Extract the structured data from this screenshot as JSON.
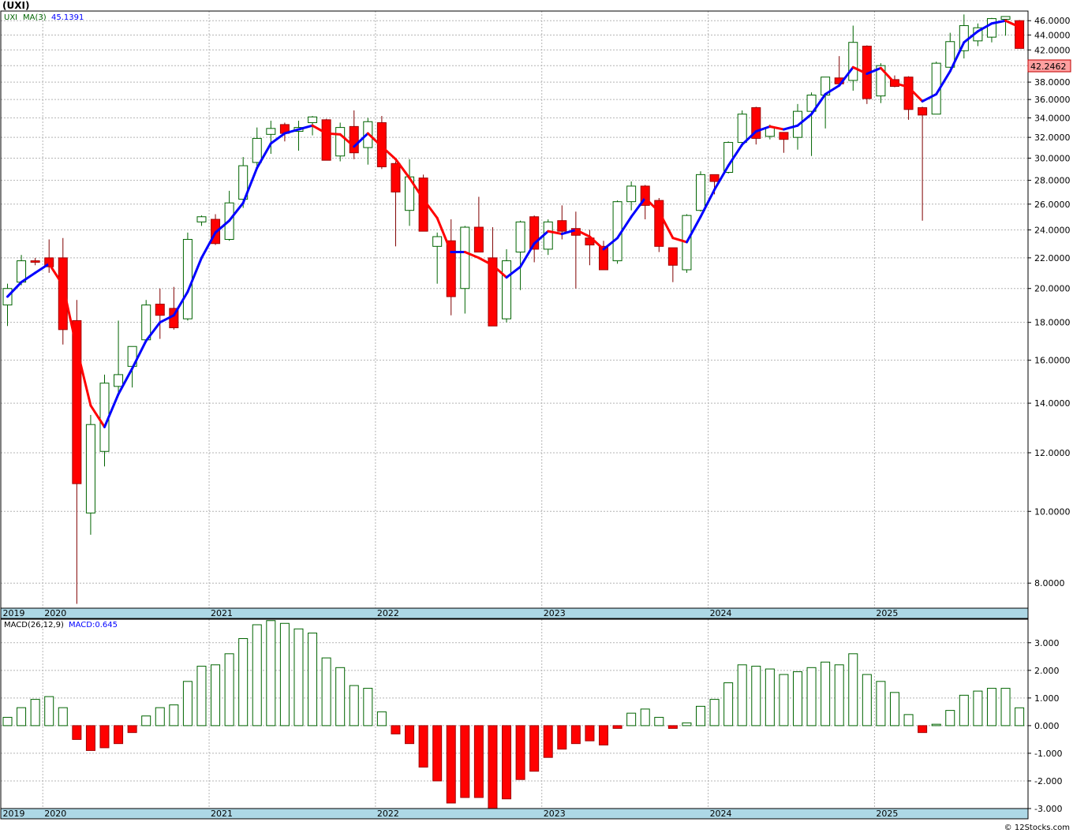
{
  "chart_data": [
    {
      "type": "candlestick",
      "title": "(UXI)",
      "legend": {
        "symbol": "UXI",
        "ma_label": "MA(3)",
        "ma_value": "45.1391"
      },
      "last_price": "42.2462",
      "y_scale": "log",
      "ylim": [
        7.4,
        47.4
      ],
      "y_ticks": [
        "8.0000",
        "10.0000",
        "12.0000",
        "14.0000",
        "16.0000",
        "18.0000",
        "20.0000",
        "22.0000",
        "24.0000",
        "26.0000",
        "28.0000",
        "30.0000",
        "32.0000",
        "34.0000",
        "36.0000",
        "38.0000",
        "40.0000",
        "42.0000",
        "44.0000",
        "46.0000"
      ],
      "x_labels": [
        "2019",
        "2020",
        "2021",
        "2022",
        "2023",
        "2024",
        "2025"
      ],
      "x_range": [
        0,
        74
      ],
      "x_label_pos": [
        0,
        3,
        15,
        27,
        39,
        51,
        63
      ],
      "up_color": "#ffffff",
      "up_border": "#006400",
      "down_color": "#ff0000",
      "ma_up_color": "#0000ff",
      "ma_down_color": "#ff0000",
      "candles": [
        {
          "o": 19.0,
          "h": 20.3,
          "l": 17.8,
          "c": 20.0
        },
        {
          "o": 20.4,
          "h": 22.2,
          "l": 20.2,
          "c": 21.8
        },
        {
          "o": 21.8,
          "h": 22.0,
          "l": 21.5,
          "c": 21.7
        },
        {
          "o": 22.0,
          "h": 23.3,
          "l": 21.0,
          "c": 21.4
        },
        {
          "o": 22.0,
          "h": 23.4,
          "l": 16.8,
          "c": 17.6
        },
        {
          "o": 18.1,
          "h": 19.3,
          "l": 7.5,
          "c": 10.9
        },
        {
          "o": 9.95,
          "h": 13.5,
          "l": 9.3,
          "c": 13.1
        },
        {
          "o": 12.05,
          "h": 15.3,
          "l": 11.5,
          "c": 14.9
        },
        {
          "o": 14.75,
          "h": 18.1,
          "l": 14.3,
          "c": 15.3
        },
        {
          "o": 15.7,
          "h": 16.7,
          "l": 14.7,
          "c": 16.7
        },
        {
          "o": 17.05,
          "h": 19.3,
          "l": 16.9,
          "c": 19.0
        },
        {
          "o": 19.05,
          "h": 20.0,
          "l": 17.1,
          "c": 18.4
        },
        {
          "o": 18.8,
          "h": 20.1,
          "l": 17.6,
          "c": 17.7
        },
        {
          "o": 18.2,
          "h": 23.8,
          "l": 18.1,
          "c": 23.3
        },
        {
          "o": 24.6,
          "h": 25.1,
          "l": 24.3,
          "c": 25.0
        },
        {
          "o": 24.8,
          "h": 25.2,
          "l": 22.9,
          "c": 23.0
        },
        {
          "o": 23.3,
          "h": 27.1,
          "l": 23.2,
          "c": 26.1
        },
        {
          "o": 26.4,
          "h": 30.1,
          "l": 25.7,
          "c": 29.3
        },
        {
          "o": 29.6,
          "h": 33.0,
          "l": 29.0,
          "c": 31.9
        },
        {
          "o": 32.3,
          "h": 33.7,
          "l": 30.4,
          "c": 32.9
        },
        {
          "o": 33.3,
          "h": 33.5,
          "l": 31.6,
          "c": 32.4
        },
        {
          "o": 32.6,
          "h": 33.7,
          "l": 30.7,
          "c": 33.0
        },
        {
          "o": 33.5,
          "h": 34.2,
          "l": 32.2,
          "c": 34.1
        },
        {
          "o": 33.8,
          "h": 33.9,
          "l": 30.0,
          "c": 29.8
        },
        {
          "o": 30.2,
          "h": 33.5,
          "l": 29.7,
          "c": 33.0
        },
        {
          "o": 33.1,
          "h": 34.8,
          "l": 29.9,
          "c": 30.5
        },
        {
          "o": 31.0,
          "h": 34.0,
          "l": 29.4,
          "c": 33.6
        },
        {
          "o": 33.5,
          "h": 34.2,
          "l": 29.0,
          "c": 29.2
        },
        {
          "o": 29.5,
          "h": 29.7,
          "l": 22.8,
          "c": 27.0
        },
        {
          "o": 25.5,
          "h": 29.9,
          "l": 24.3,
          "c": 28.3
        },
        {
          "o": 28.2,
          "h": 28.5,
          "l": 23.9,
          "c": 23.9
        },
        {
          "o": 22.8,
          "h": 23.8,
          "l": 20.3,
          "c": 23.5
        },
        {
          "o": 23.2,
          "h": 24.8,
          "l": 18.4,
          "c": 19.5
        },
        {
          "o": 20.0,
          "h": 24.3,
          "l": 18.5,
          "c": 24.2
        },
        {
          "o": 24.2,
          "h": 26.6,
          "l": 22.4,
          "c": 22.4
        },
        {
          "o": 22.0,
          "h": 24.2,
          "l": 17.8,
          "c": 17.8
        },
        {
          "o": 18.2,
          "h": 22.6,
          "l": 18.0,
          "c": 21.8
        },
        {
          "o": 22.4,
          "h": 24.7,
          "l": 19.9,
          "c": 24.6
        },
        {
          "o": 25.0,
          "h": 25.1,
          "l": 21.7,
          "c": 22.6
        },
        {
          "o": 22.6,
          "h": 24.8,
          "l": 22.2,
          "c": 24.6
        },
        {
          "o": 24.7,
          "h": 25.9,
          "l": 23.3,
          "c": 23.9
        },
        {
          "o": 24.1,
          "h": 25.4,
          "l": 20.0,
          "c": 23.6
        },
        {
          "o": 23.4,
          "h": 24.0,
          "l": 21.5,
          "c": 22.9
        },
        {
          "o": 22.8,
          "h": 23.2,
          "l": 21.3,
          "c": 21.2
        },
        {
          "o": 21.8,
          "h": 26.3,
          "l": 21.6,
          "c": 26.2
        },
        {
          "o": 26.2,
          "h": 27.9,
          "l": 25.5,
          "c": 27.5
        },
        {
          "o": 27.5,
          "h": 27.6,
          "l": 24.8,
          "c": 25.9
        },
        {
          "o": 26.3,
          "h": 26.5,
          "l": 22.4,
          "c": 22.8
        },
        {
          "o": 22.7,
          "h": 22.7,
          "l": 20.4,
          "c": 21.5
        },
        {
          "o": 21.2,
          "h": 25.2,
          "l": 21.0,
          "c": 25.1
        },
        {
          "o": 25.5,
          "h": 28.8,
          "l": 25.4,
          "c": 28.5
        },
        {
          "o": 28.5,
          "h": 28.5,
          "l": 26.8,
          "c": 27.9
        },
        {
          "o": 28.7,
          "h": 31.6,
          "l": 28.6,
          "c": 31.5
        },
        {
          "o": 31.5,
          "h": 34.8,
          "l": 31.1,
          "c": 34.4
        },
        {
          "o": 35.1,
          "h": 35.2,
          "l": 31.3,
          "c": 31.9
        },
        {
          "o": 32.1,
          "h": 33.3,
          "l": 31.8,
          "c": 33.0
        },
        {
          "o": 32.5,
          "h": 32.5,
          "l": 30.5,
          "c": 31.8
        },
        {
          "o": 32.0,
          "h": 35.5,
          "l": 30.8,
          "c": 34.7
        },
        {
          "o": 34.7,
          "h": 36.8,
          "l": 30.2,
          "c": 36.5
        },
        {
          "o": 36.5,
          "h": 38.4,
          "l": 32.9,
          "c": 38.6
        },
        {
          "o": 38.5,
          "h": 41.2,
          "l": 37.5,
          "c": 37.8
        },
        {
          "o": 38.2,
          "h": 45.3,
          "l": 37.0,
          "c": 43.0
        },
        {
          "o": 42.5,
          "h": 42.6,
          "l": 35.5,
          "c": 36.1
        },
        {
          "o": 36.4,
          "h": 40.3,
          "l": 35.6,
          "c": 40.0
        },
        {
          "o": 38.3,
          "h": 38.8,
          "l": 37.4,
          "c": 37.5
        },
        {
          "o": 38.6,
          "h": 38.7,
          "l": 33.8,
          "c": 34.9
        },
        {
          "o": 35.1,
          "h": 35.2,
          "l": 24.7,
          "c": 34.3
        },
        {
          "o": 34.4,
          "h": 40.5,
          "l": 34.5,
          "c": 40.3
        },
        {
          "o": 39.8,
          "h": 44.3,
          "l": 39.7,
          "c": 43.1
        },
        {
          "o": 41.9,
          "h": 46.9,
          "l": 40.9,
          "c": 45.3
        },
        {
          "o": 43.2,
          "h": 45.6,
          "l": 42.5,
          "c": 45.0
        },
        {
          "o": 43.7,
          "h": 46.4,
          "l": 43.0,
          "c": 46.3
        },
        {
          "o": 46.2,
          "h": 46.6,
          "l": 43.9,
          "c": 46.6
        },
        {
          "o": 46.0,
          "h": 46.1,
          "l": 42.2,
          "c": 42.2
        }
      ],
      "ma": [
        {
          "i": 0,
          "v": 19.5
        },
        {
          "i": 1,
          "v": 20.4
        },
        {
          "i": 2,
          "v": 21.0
        },
        {
          "i": 3,
          "v": 21.6
        },
        {
          "i": 4,
          "v": 20.2
        },
        {
          "i": 5,
          "v": 16.6
        },
        {
          "i": 6,
          "v": 13.9
        },
        {
          "i": 7,
          "v": 13.0
        },
        {
          "i": 8,
          "v": 14.4
        },
        {
          "i": 9,
          "v": 15.6
        },
        {
          "i": 10,
          "v": 17.0
        },
        {
          "i": 11,
          "v": 18.0
        },
        {
          "i": 12,
          "v": 18.4
        },
        {
          "i": 13,
          "v": 19.8
        },
        {
          "i": 14,
          "v": 22.0
        },
        {
          "i": 15,
          "v": 23.8
        },
        {
          "i": 16,
          "v": 24.7
        },
        {
          "i": 17,
          "v": 26.1
        },
        {
          "i": 18,
          "v": 29.1
        },
        {
          "i": 19,
          "v": 31.4
        },
        {
          "i": 20,
          "v": 32.4
        },
        {
          "i": 21,
          "v": 32.8
        },
        {
          "i": 22,
          "v": 33.2
        },
        {
          "i": 23,
          "v": 32.4
        },
        {
          "i": 24,
          "v": 32.3
        },
        {
          "i": 25,
          "v": 31.1
        },
        {
          "i": 26,
          "v": 32.4
        },
        {
          "i": 27,
          "v": 31.1
        },
        {
          "i": 28,
          "v": 29.9
        },
        {
          "i": 29,
          "v": 28.2
        },
        {
          "i": 30,
          "v": 26.4
        },
        {
          "i": 31,
          "v": 24.9
        },
        {
          "i": 32,
          "v": 22.4
        },
        {
          "i": 33,
          "v": 22.4
        },
        {
          "i": 34,
          "v": 22.0
        },
        {
          "i": 35,
          "v": 21.5
        },
        {
          "i": 36,
          "v": 20.7
        },
        {
          "i": 37,
          "v": 21.4
        },
        {
          "i": 38,
          "v": 23.0
        },
        {
          "i": 39,
          "v": 23.9
        },
        {
          "i": 40,
          "v": 23.7
        },
        {
          "i": 41,
          "v": 24.0
        },
        {
          "i": 42,
          "v": 23.5
        },
        {
          "i": 43,
          "v": 22.6
        },
        {
          "i": 44,
          "v": 23.4
        },
        {
          "i": 45,
          "v": 25.0
        },
        {
          "i": 46,
          "v": 26.5
        },
        {
          "i": 47,
          "v": 25.4
        },
        {
          "i": 48,
          "v": 23.4
        },
        {
          "i": 49,
          "v": 23.1
        },
        {
          "i": 50,
          "v": 25.0
        },
        {
          "i": 51,
          "v": 27.2
        },
        {
          "i": 52,
          "v": 29.3
        },
        {
          "i": 53,
          "v": 31.3
        },
        {
          "i": 54,
          "v": 32.6
        },
        {
          "i": 55,
          "v": 33.1
        },
        {
          "i": 56,
          "v": 32.8
        },
        {
          "i": 57,
          "v": 33.2
        },
        {
          "i": 58,
          "v": 34.4
        },
        {
          "i": 59,
          "v": 36.6
        },
        {
          "i": 60,
          "v": 37.6
        },
        {
          "i": 61,
          "v": 39.8
        },
        {
          "i": 62,
          "v": 39.0
        },
        {
          "i": 63,
          "v": 39.7
        },
        {
          "i": 64,
          "v": 37.9
        },
        {
          "i": 65,
          "v": 37.4
        },
        {
          "i": 66,
          "v": 35.8
        },
        {
          "i": 67,
          "v": 36.6
        },
        {
          "i": 68,
          "v": 39.3
        },
        {
          "i": 69,
          "v": 43.0
        },
        {
          "i": 70,
          "v": 44.5
        },
        {
          "i": 71,
          "v": 45.6
        },
        {
          "i": 72,
          "v": 46.0
        },
        {
          "i": 73,
          "v": 45.1
        }
      ]
    },
    {
      "type": "bar",
      "legend": {
        "label": "MACD(26,12,9)",
        "value_label": "MACD:0.645"
      },
      "ylim": [
        -3.0,
        3.85
      ],
      "y_ticks": [
        "3.000",
        "2.000",
        "1.000",
        "0.000",
        "-1.000",
        "-2.000",
        "-3.000"
      ],
      "x_labels": [
        "2019",
        "2020",
        "2021",
        "2022",
        "2023",
        "2024",
        "2025"
      ],
      "x_label_pos": [
        0,
        3,
        15,
        27,
        39,
        51,
        63
      ],
      "pos_border": "#006400",
      "neg_color": "#ff0000",
      "values": [
        0.3,
        0.65,
        0.95,
        1.05,
        0.65,
        -0.5,
        -0.9,
        -0.8,
        -0.65,
        -0.25,
        0.35,
        0.65,
        0.75,
        1.6,
        2.15,
        2.2,
        2.6,
        3.15,
        3.65,
        3.8,
        3.7,
        3.5,
        3.35,
        2.45,
        2.1,
        1.45,
        1.35,
        0.5,
        -0.3,
        -0.65,
        -1.5,
        -2.0,
        -2.8,
        -2.6,
        -2.6,
        -3.0,
        -2.65,
        -1.95,
        -1.65,
        -1.15,
        -0.85,
        -0.65,
        -0.55,
        -0.7,
        -0.1,
        0.45,
        0.6,
        0.3,
        -0.1,
        0.1,
        0.7,
        0.95,
        1.55,
        2.2,
        2.15,
        2.05,
        1.85,
        1.95,
        2.1,
        2.3,
        2.2,
        2.6,
        1.85,
        1.6,
        1.2,
        0.4,
        -0.25,
        0.05,
        0.55,
        1.1,
        1.25,
        1.35,
        1.35,
        0.645
      ]
    }
  ]
}
